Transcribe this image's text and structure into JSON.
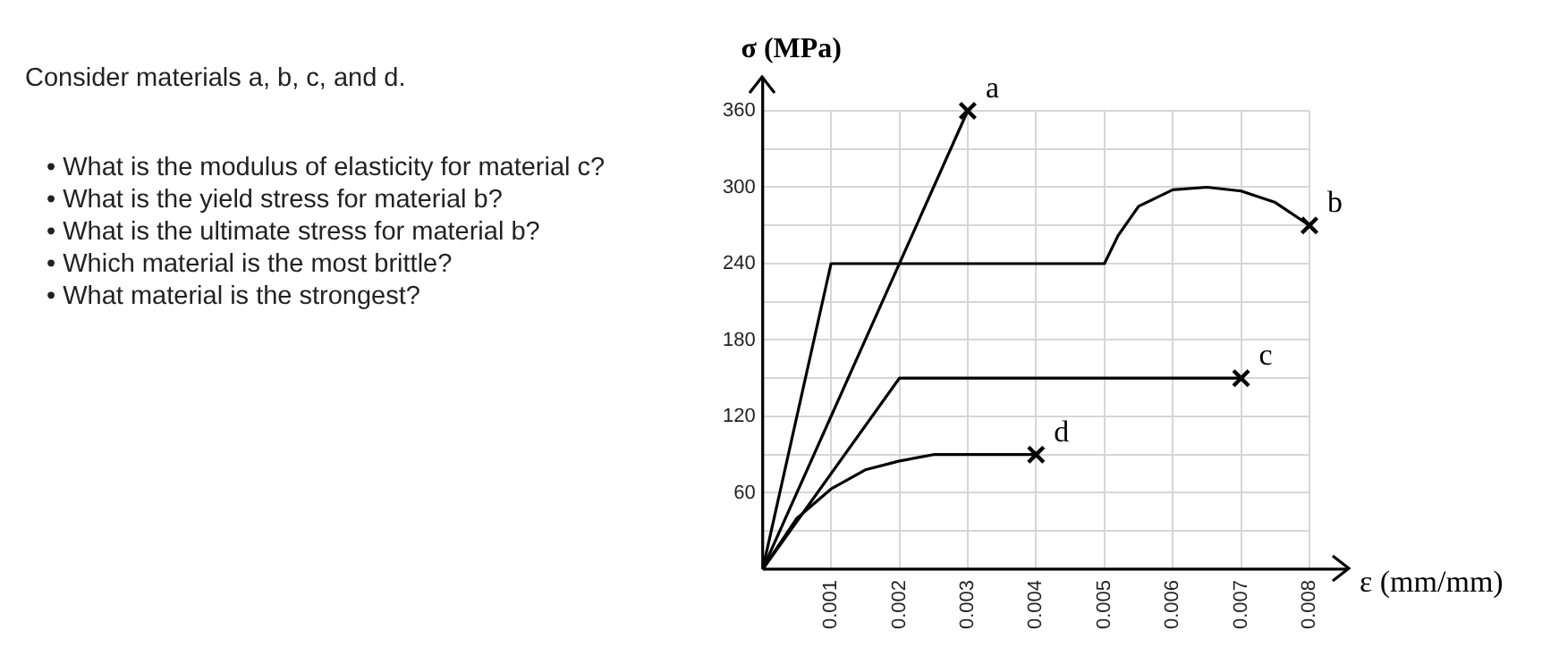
{
  "chart_data": {
    "type": "line",
    "title": "Consider materials a, b, c, and d.",
    "annotations": [
      "• What is the modulus of elasticity for material c?",
      "• What is the yield stress for material b?",
      "• What is the ultimate stress for material b?",
      "• Which material is the most brittle?",
      "• What material is the strongest?"
    ],
    "xlabel": "ε (mm/mm)",
    "ylabel": "σ (MPa)",
    "series": [
      {
        "name": "a",
        "color": "#000000",
        "x": [
          0,
          0.003
        ],
        "values": [
          0,
          360
        ]
      },
      {
        "name": "b",
        "color": "#000000",
        "x": [
          0,
          0.001,
          0.005,
          0.0052,
          0.0055,
          0.006,
          0.0065,
          0.007,
          0.0075,
          0.008
        ],
        "values": [
          0,
          240,
          240,
          262,
          285,
          298,
          300,
          297,
          288,
          270
        ]
      },
      {
        "name": "c",
        "color": "#000000",
        "x": [
          0,
          0.002,
          0.007
        ],
        "values": [
          0,
          150,
          150
        ]
      },
      {
        "name": "d",
        "color": "#000000",
        "x": [
          0,
          0.0005,
          0.001,
          0.0015,
          0.002,
          0.0025,
          0.004
        ],
        "values": [
          0,
          40,
          63,
          78,
          85,
          90,
          90
        ]
      },
      {
        "type": "scatter",
        "marker": "cross",
        "color": "#000000",
        "x": [
          0.003,
          0.008,
          0.007,
          0.004
        ],
        "values": [
          360,
          270,
          150,
          90
        ]
      }
    ],
    "xlim": [
      0,
      0.008
    ],
    "xticks": [
      0.001,
      0.002,
      0.003,
      0.004,
      0.005,
      0.006,
      0.007,
      0.008
    ],
    "ylim": [
      0,
      360
    ],
    "yticks": [
      {
        "value": 30,
        "label": null
      },
      60,
      {
        "value": 90,
        "label": null
      },
      120,
      {
        "value": 150,
        "label": null
      },
      180,
      {
        "value": 210,
        "label": null
      },
      240,
      {
        "value": 270,
        "label": null
      },
      300,
      {
        "value": 330,
        "label": null
      },
      360
    ],
    "grid": true,
    "legend": false,
    "marker": "none",
    "line_style": "solid"
  }
}
